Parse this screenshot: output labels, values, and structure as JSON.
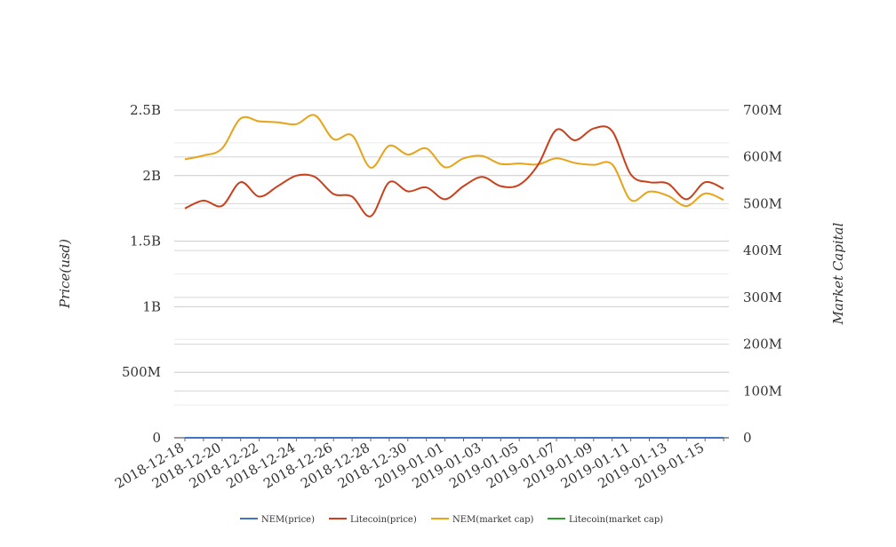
{
  "chart_data": {
    "type": "line",
    "x": [
      "2018-12-18",
      "2018-12-19",
      "2018-12-20",
      "2018-12-21",
      "2018-12-22",
      "2018-12-23",
      "2018-12-24",
      "2018-12-25",
      "2018-12-26",
      "2018-12-27",
      "2018-12-28",
      "2018-12-29",
      "2018-12-30",
      "2018-12-31",
      "2019-01-01",
      "2019-01-02",
      "2019-01-03",
      "2019-01-04",
      "2019-01-05",
      "2019-01-06",
      "2019-01-07",
      "2019-01-08",
      "2019-01-09",
      "2019-01-10",
      "2019-01-11",
      "2019-01-12",
      "2019-01-13",
      "2019-01-14",
      "2019-01-15",
      "2019-01-16"
    ],
    "x_tick_labels": [
      "2018-12-18",
      "2018-12-20",
      "2018-12-22",
      "2018-12-24",
      "2018-12-26",
      "2018-12-28",
      "2018-12-30",
      "2019-01-01",
      "2019-01-03",
      "2019-01-05",
      "2019-01-07",
      "2019-01-09",
      "2019-01-11",
      "2019-01-13",
      "2019-01-15"
    ],
    "y_left": {
      "label": "Price(usd)",
      "range": [
        0,
        2500000000
      ],
      "tick_values": [
        0,
        500000000,
        1000000000,
        1500000000,
        2000000000,
        2500000000
      ],
      "tick_labels": [
        "0",
        "500M",
        "1B",
        "1.5B",
        "2B",
        "2.5B"
      ]
    },
    "y_right": {
      "label": "Market Capital",
      "range": [
        0,
        700000000
      ],
      "tick_values": [
        0,
        100000000,
        200000000,
        300000000,
        400000000,
        500000000,
        600000000,
        700000000
      ],
      "tick_labels": [
        "0",
        "100M",
        "200M",
        "300M",
        "400M",
        "500M",
        "600M",
        "700M"
      ]
    },
    "grid": true,
    "legend_position": "bottom",
    "series": [
      {
        "name": "NEM(price)",
        "axis": "left",
        "color": "#4472c4",
        "values": [
          0.05,
          0.05,
          0.05,
          0.05,
          0.05,
          0.05,
          0.05,
          0.05,
          0.05,
          0.05,
          0.05,
          0.05,
          0.05,
          0.05,
          0.05,
          0.05,
          0.05,
          0.05,
          0.05,
          0.05,
          0.05,
          0.05,
          0.05,
          0.05,
          0.05,
          0.05,
          0.05,
          0.05,
          0.05,
          0.05
        ]
      },
      {
        "name": "Litecoin(price)",
        "axis": "left",
        "color": "#c9401b",
        "values": [
          1750000000,
          1810000000,
          1770000000,
          1950000000,
          1840000000,
          1920000000,
          2000000000,
          1990000000,
          1860000000,
          1840000000,
          1690000000,
          1950000000,
          1880000000,
          1910000000,
          1820000000,
          1920000000,
          1990000000,
          1920000000,
          1930000000,
          2080000000,
          2350000000,
          2270000000,
          2360000000,
          2340000000,
          2010000000,
          1950000000,
          1940000000,
          1820000000,
          1950000000,
          1900000000
        ]
      },
      {
        "name": "NEM(market cap)",
        "axis": "right",
        "color": "#e8a317",
        "values": [
          595000000,
          603000000,
          618000000,
          682000000,
          676000000,
          674000000,
          670000000,
          689000000,
          638000000,
          646000000,
          577000000,
          624000000,
          605000000,
          618000000,
          578000000,
          597000000,
          602000000,
          585000000,
          586000000,
          584000000,
          597000000,
          587000000,
          583000000,
          584000000,
          508000000,
          526000000,
          517000000,
          495000000,
          522000000,
          508000000
        ]
      },
      {
        "name": "Litecoin(market cap)",
        "axis": "right",
        "color": "#2e9e2e",
        "values": [
          120,
          120,
          120,
          120,
          120,
          120,
          120,
          120,
          120,
          120,
          120,
          120,
          120,
          120,
          120,
          120,
          120,
          120,
          120,
          120,
          120,
          120,
          120,
          120,
          120,
          120,
          120,
          120,
          120,
          120
        ]
      }
    ]
  }
}
